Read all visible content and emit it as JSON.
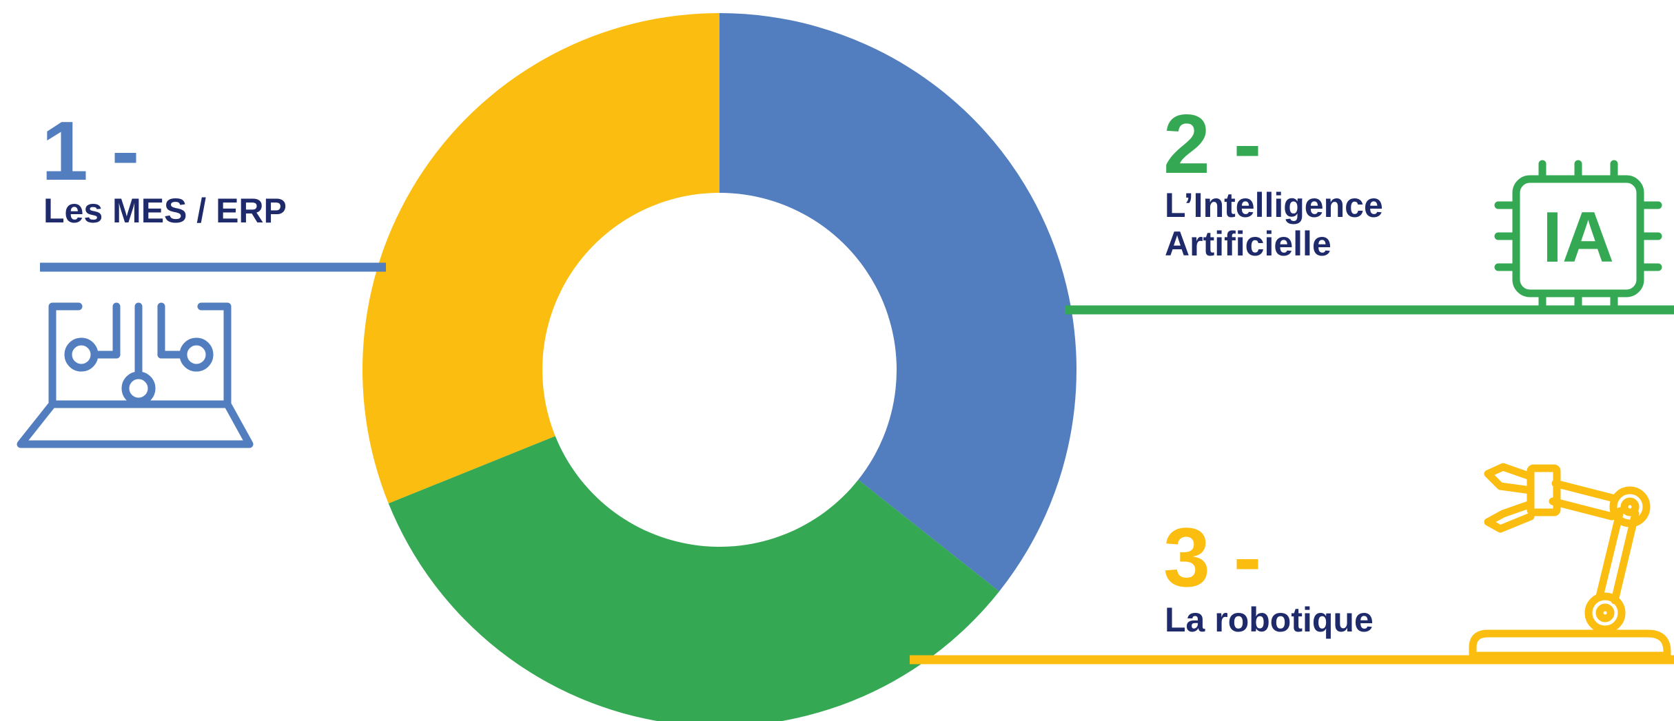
{
  "colors": {
    "blue": "#527DBF",
    "green": "#34A853",
    "yellow": "#FABD10",
    "label_text": "#1F2A6B"
  },
  "donut": {
    "segments": [
      {
        "id": "mes-erp",
        "color": "blue",
        "share": 0.3567
      },
      {
        "id": "ia",
        "color": "green",
        "share": 0.3322
      },
      {
        "id": "robotique",
        "color": "yellow",
        "share": 0.3111
      }
    ]
  },
  "items": [
    {
      "number": "1 -",
      "label": "Les MES / ERP",
      "color": "blue",
      "icon": "laptop-circuit-icon"
    },
    {
      "number": "2 -",
      "label_lines": [
        "L’Intelligence",
        "Artificielle"
      ],
      "color": "green",
      "icon": "ai-chip-icon",
      "icon_text": "IA"
    },
    {
      "number": "3 -",
      "label": "La robotique",
      "color": "yellow",
      "icon": "robotic-arm-icon"
    }
  ]
}
